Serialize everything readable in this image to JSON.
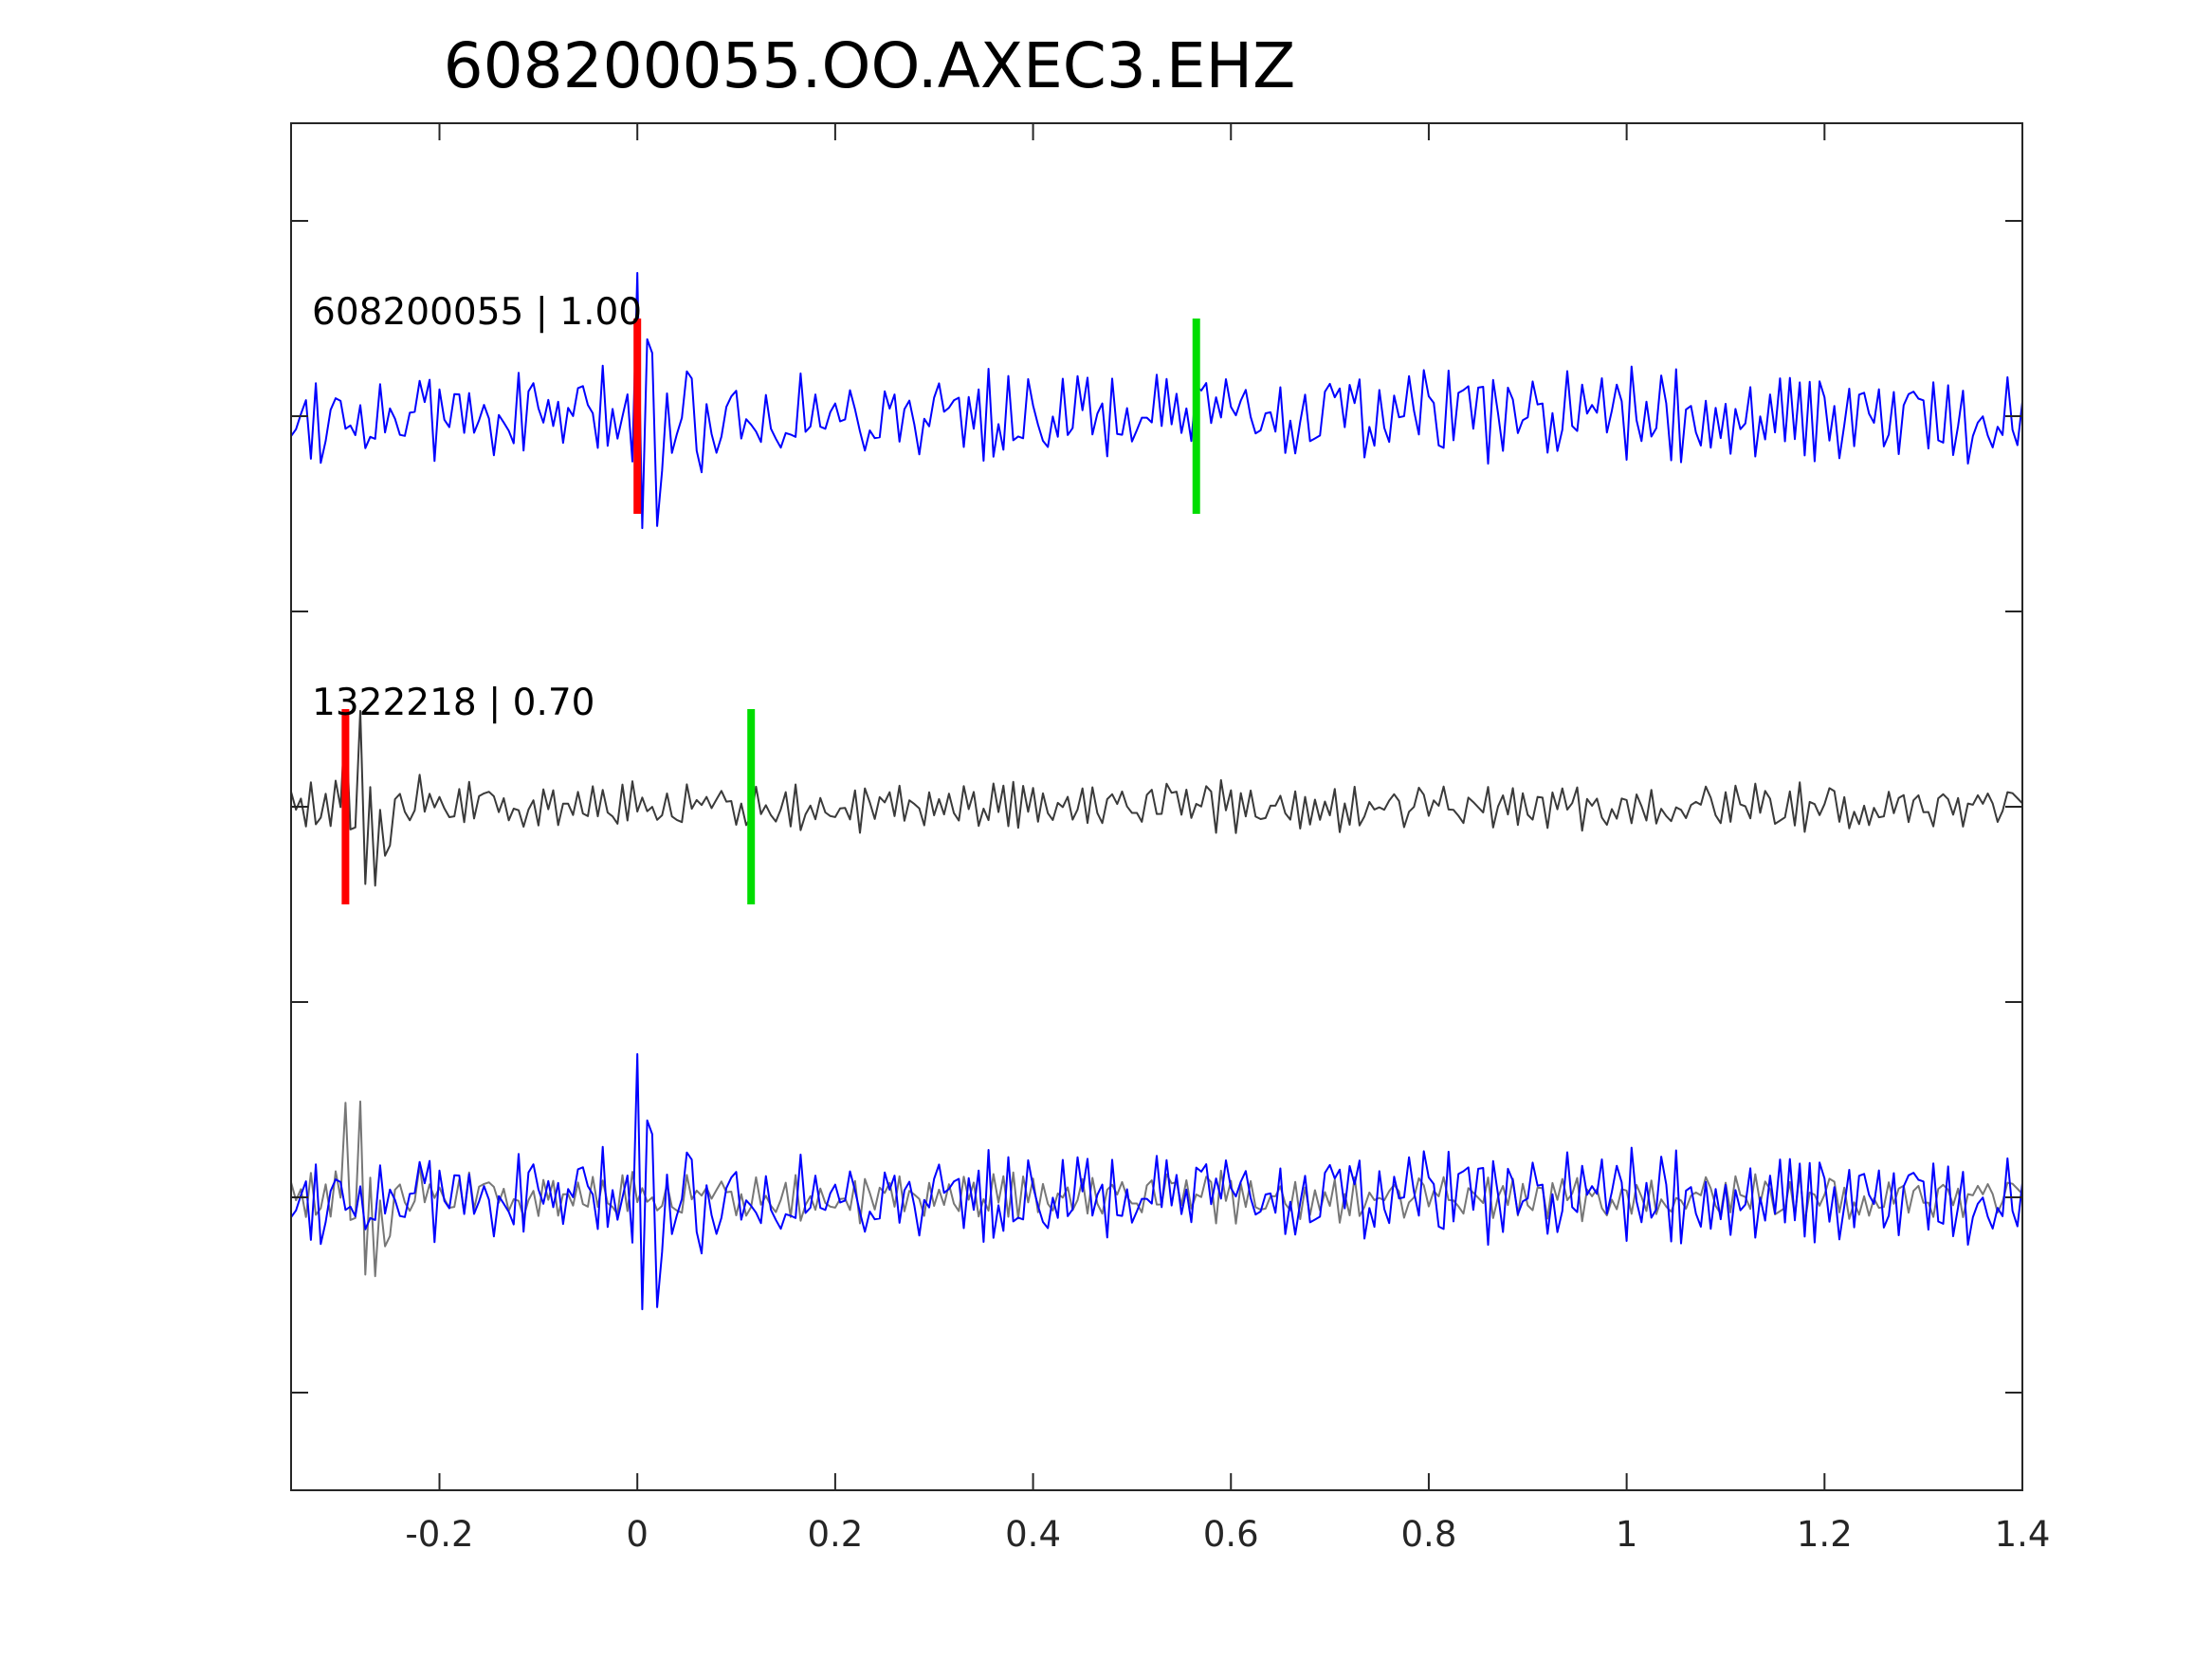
{
  "chart_data": {
    "type": "line",
    "title": "608200055.OO.AXEC3.EHZ",
    "xlabel": "",
    "ylabel": "",
    "xlim": [
      -0.35,
      1.4
    ],
    "ylim": [
      -3.5,
      3.5
    ],
    "xticks": [
      -0.2,
      0,
      0.2,
      0.4,
      0.6,
      0.8,
      1,
      1.2,
      1.4
    ],
    "xtick_labels": [
      "-0.2",
      "0",
      "0.2",
      "0.4",
      "0.6",
      "0.8",
      "1",
      "1.2",
      "1.4"
    ],
    "yticks": [
      -3,
      -2,
      -1,
      0,
      1,
      2,
      3
    ],
    "ytick_labels": [],
    "grid": false,
    "legend": "none",
    "sample_interval": 0.005,
    "traces": [
      {
        "label": "608200055 | 1.00",
        "baseline": 2,
        "color": "#0000ff",
        "p_pick": 0.0,
        "s_pick": 0.565
      },
      {
        "label": "1322218 | 0.70",
        "baseline": 0,
        "color": "#3a3a3a",
        "p_pick": -0.295,
        "s_pick": 0.115
      },
      {
        "label": "",
        "baseline": -2,
        "color": "#0000ff",
        "overlay_color": "#777777",
        "overlay": true
      }
    ],
    "pick_colors": {
      "p": "#ff0000",
      "s": "#00dd00"
    }
  }
}
